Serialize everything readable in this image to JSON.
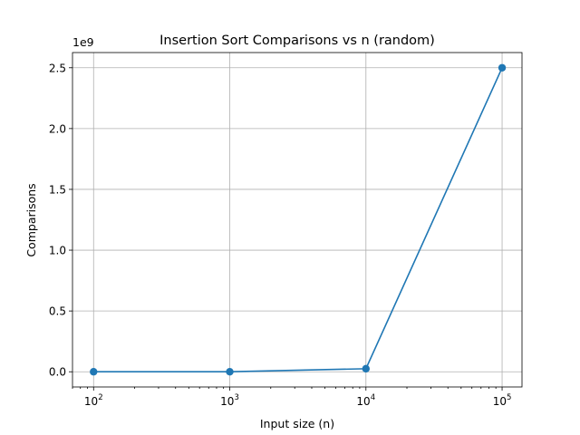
{
  "chart_data": {
    "type": "line",
    "title": "Insertion Sort Comparisons vs n (random)",
    "xlabel": "Input size (n)",
    "ylabel": "Comparisons",
    "xscale": "log",
    "x_tick_labels": [
      {
        "base": "10",
        "exp": "2"
      },
      {
        "base": "10",
        "exp": "3"
      },
      {
        "base": "10",
        "exp": "4"
      },
      {
        "base": "10",
        "exp": "5"
      }
    ],
    "y_tick_labels": [
      "0.0",
      "0.5",
      "1.0",
      "1.5",
      "2.0",
      "2.5"
    ],
    "y_offset_label": "1e9",
    "ylim": [
      -0.125,
      2.625
    ],
    "y_tick_values": [
      0.0,
      0.5,
      1.0,
      1.5,
      2.0,
      2.5
    ],
    "xlim": [
      70,
      140000
    ],
    "x_tick_values": [
      100,
      1000,
      10000,
      100000
    ],
    "grid": true,
    "color": "#1f77b4",
    "series": [
      {
        "x": [
          100,
          1000,
          10000,
          100000
        ],
        "values": [
          2.5e-06,
          0.00025,
          0.025,
          2.5
        ],
        "marker": "circle"
      }
    ]
  }
}
